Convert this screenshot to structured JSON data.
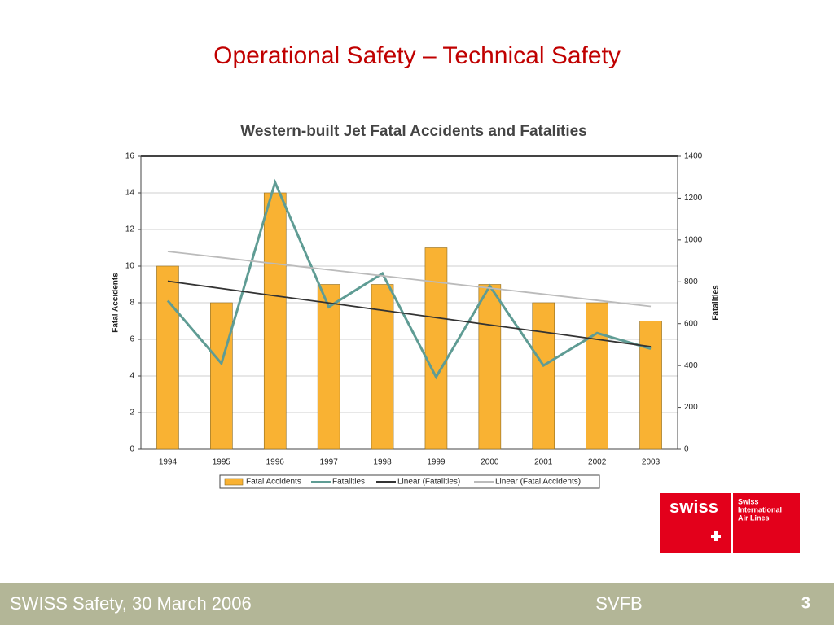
{
  "slide": {
    "title": "Operational Safety – Technical Safety",
    "footer_left": "SWISS Safety, 30 March 2006",
    "footer_center": "SVFB",
    "page_number": "3"
  },
  "logo": {
    "brand": "swiss",
    "line1": "Swiss",
    "line2": "International",
    "line3": "Air Lines"
  },
  "chart_data": {
    "type": "bar",
    "title": "Western-built Jet Fatal Accidents and Fatalities",
    "ylabel": "Fatal Accidents",
    "y2label": "Fatalities",
    "categories": [
      "1994",
      "1995",
      "1996",
      "1997",
      "1998",
      "1999",
      "2000",
      "2001",
      "2002",
      "2003"
    ],
    "series": [
      {
        "name": "Fatal Accidents",
        "type": "bar",
        "color": "#f9b233",
        "values": [
          10,
          8,
          14,
          9,
          9,
          11,
          9,
          8,
          8,
          7
        ]
      },
      {
        "name": "Fatalities",
        "type": "line",
        "axis": "y2",
        "color": "#5f9c94",
        "values": [
          710,
          410,
          1275,
          680,
          840,
          345,
          780,
          400,
          555,
          480
        ]
      },
      {
        "name": "Linear (Fatalities)",
        "type": "line",
        "axis": "y2",
        "color": "#333333",
        "values": [
          803,
          768,
          733,
          699,
          664,
          629,
          594,
          560,
          525,
          490
        ]
      },
      {
        "name": "Linear (Fatal Accidents)",
        "type": "line",
        "color": "#bbbbbb",
        "values": [
          10.8,
          10.47,
          10.13,
          9.8,
          9.47,
          9.13,
          8.8,
          8.47,
          8.13,
          7.8
        ]
      }
    ],
    "ylim": [
      0,
      16
    ],
    "yticks": [
      0,
      2,
      4,
      6,
      8,
      10,
      12,
      14,
      16
    ],
    "y2lim": [
      0,
      1400
    ],
    "y2ticks": [
      0,
      200,
      400,
      600,
      800,
      1000,
      1200,
      1400
    ],
    "grid": true,
    "legend": "bottom"
  }
}
